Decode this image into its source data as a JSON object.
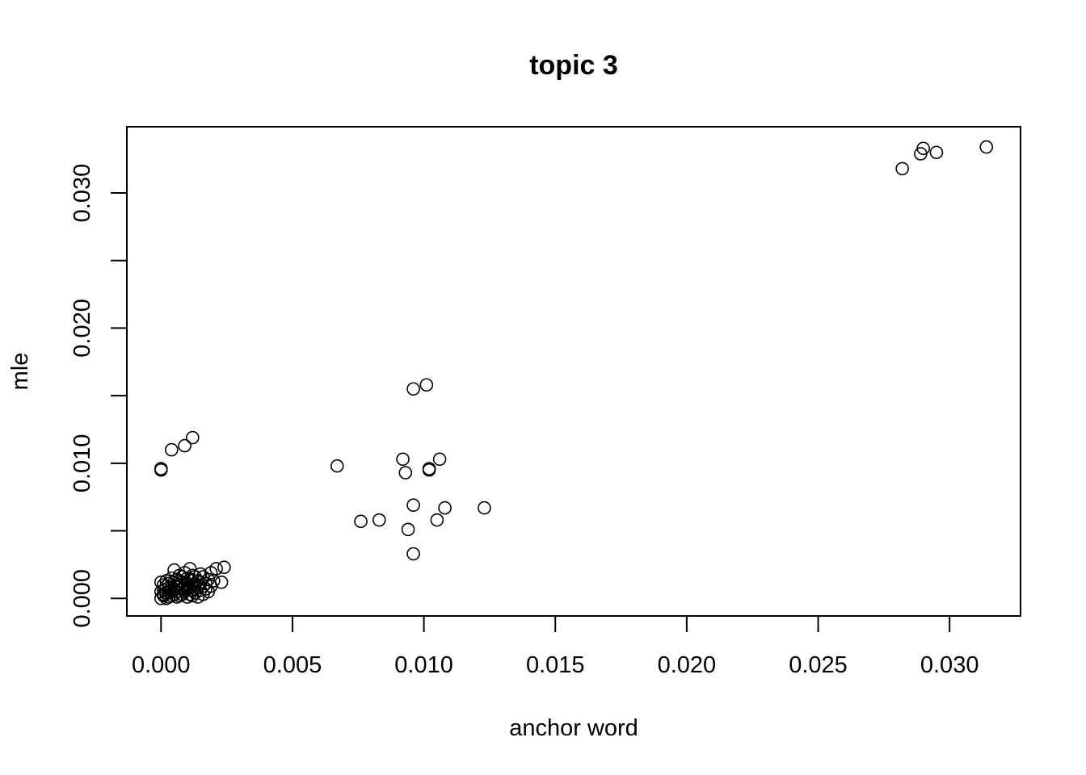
{
  "chart_data": {
    "type": "scatter",
    "title": "topic 3",
    "xlabel": "anchor word",
    "ylabel": "mle",
    "xlim": [
      -0.0013,
      0.0327
    ],
    "ylim": [
      -0.0013,
      0.0349
    ],
    "x_ticks": [
      0.0,
      0.005,
      0.01,
      0.015,
      0.02,
      0.025,
      0.03
    ],
    "x_tick_labels": [
      "0.000",
      "0.005",
      "0.010",
      "0.015",
      "0.020",
      "0.025",
      "0.030"
    ],
    "y_ticks": [
      0.0,
      0.005,
      0.01,
      0.015,
      0.02,
      0.025,
      0.03
    ],
    "y_tick_labels": [
      "0.000",
      "",
      "0.010",
      "",
      "0.020",
      "",
      "0.030"
    ],
    "grid": false,
    "legend": "none",
    "marker": "open-circle",
    "points": [
      [
        0.0314,
        0.0334
      ],
      [
        0.029,
        0.0333
      ],
      [
        0.0289,
        0.0329
      ],
      [
        0.0295,
        0.033
      ],
      [
        0.0282,
        0.0318
      ],
      [
        0.0101,
        0.0158
      ],
      [
        0.0096,
        0.0155
      ],
      [
        0.0012,
        0.0119
      ],
      [
        0.0009,
        0.0113
      ],
      [
        0.0004,
        0.011
      ],
      [
        0.0,
        0.0096
      ],
      [
        0.0,
        0.0095
      ],
      [
        0.0067,
        0.0098
      ],
      [
        0.0092,
        0.0103
      ],
      [
        0.0093,
        0.0093
      ],
      [
        0.0102,
        0.0096
      ],
      [
        0.0102,
        0.0095
      ],
      [
        0.0106,
        0.0103
      ],
      [
        0.0076,
        0.0057
      ],
      [
        0.0083,
        0.0058
      ],
      [
        0.0096,
        0.0069
      ],
      [
        0.0094,
        0.0051
      ],
      [
        0.0105,
        0.0058
      ],
      [
        0.0108,
        0.0067
      ],
      [
        0.0123,
        0.0067
      ],
      [
        0.0096,
        0.0033
      ],
      [
        0.0024,
        0.0023
      ],
      [
        0.0021,
        0.0022
      ],
      [
        0.0023,
        0.0012
      ],
      [
        0.0011,
        0.0022
      ],
      [
        0.0005,
        0.0021
      ],
      [
        0.0019,
        0.0019
      ],
      [
        0.0,
        0.0
      ],
      [
        0.0001,
        0.0002
      ],
      [
        0.0002,
        0.0004
      ],
      [
        0.0003,
        0.0001
      ],
      [
        0.0004,
        0.0006
      ],
      [
        0.0005,
        0.0003
      ],
      [
        0.0006,
        0.0009
      ],
      [
        0.0007,
        0.0002
      ],
      [
        0.0008,
        0.0012
      ],
      [
        0.0009,
        0.0005
      ],
      [
        0.001,
        0.0015
      ],
      [
        0.0011,
        0.0008
      ],
      [
        0.0012,
        0.001
      ],
      [
        0.0013,
        0.0004
      ],
      [
        0.0014,
        0.0013
      ],
      [
        0.0015,
        0.0006
      ],
      [
        0.0016,
        0.0016
      ],
      [
        0.0017,
        0.0011
      ],
      [
        0.0018,
        0.0014
      ],
      [
        0.0019,
        0.0009
      ],
      [
        0.002,
        0.0013
      ],
      [
        0.0001,
        0.001
      ],
      [
        0.0002,
        0.0013
      ],
      [
        0.0003,
        0.0008
      ],
      [
        0.0004,
        0.0015
      ],
      [
        0.0006,
        0.0005
      ],
      [
        0.0007,
        0.0017
      ],
      [
        0.0008,
        0.0007
      ],
      [
        0.0009,
        0.0019
      ],
      [
        0.001,
        0.0001
      ],
      [
        0.0011,
        0.0014
      ],
      [
        0.0012,
        0.0017
      ],
      [
        0.0013,
        0.0011
      ],
      [
        0.0014,
        0.0001
      ],
      [
        0.0015,
        0.0012
      ],
      [
        0.0016,
        0.0003
      ],
      [
        0.0017,
        0.0007
      ],
      [
        0.0,
        0.0005
      ],
      [
        0.0,
        0.0012
      ],
      [
        0.0001,
        0.0006
      ],
      [
        0.0002,
        0.0
      ],
      [
        0.0003,
        0.0011
      ],
      [
        0.0005,
        0.0012
      ],
      [
        0.0006,
        0.0001
      ],
      [
        0.0007,
        0.001
      ],
      [
        0.0008,
        0.0003
      ],
      [
        0.0009,
        0.001
      ],
      [
        0.001,
        0.0007
      ],
      [
        0.0011,
        0.0003
      ],
      [
        0.0012,
        0.0006
      ],
      [
        0.0013,
        0.0016
      ],
      [
        0.0014,
        0.0008
      ],
      [
        0.0015,
        0.0018
      ],
      [
        0.0016,
        0.0009
      ],
      [
        0.0005,
        0.0007
      ],
      [
        0.0004,
        0.0002
      ],
      [
        0.0003,
        0.0005
      ],
      [
        0.0007,
        0.0013
      ],
      [
        0.0012,
        0.0002
      ],
      [
        0.0018,
        0.0005
      ],
      [
        0.0001,
        0.0003
      ],
      [
        0.0002,
        0.0009
      ],
      [
        0.0006,
        0.0014
      ],
      [
        0.0008,
        0.0016
      ],
      [
        0.001,
        0.0011
      ],
      [
        0.0013,
        0.0007
      ]
    ]
  }
}
